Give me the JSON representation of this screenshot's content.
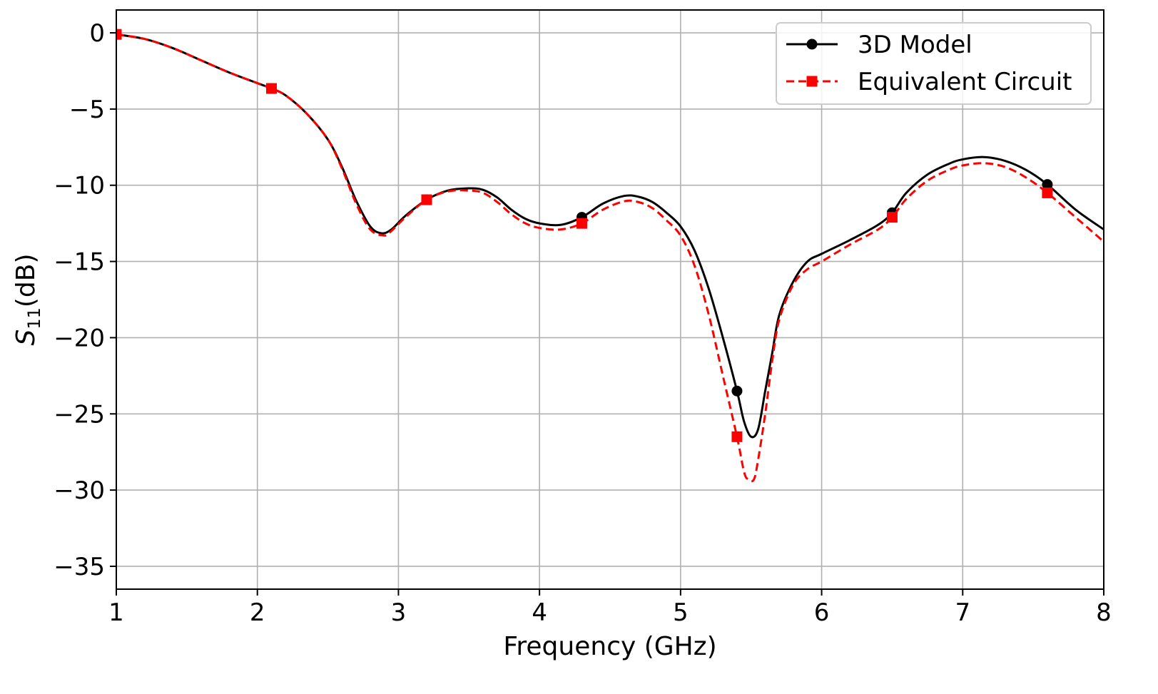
{
  "chart_data": {
    "type": "line",
    "title": "",
    "xlabel": "Frequency (GHz)",
    "ylabel": {
      "base": "S",
      "sub": "11",
      "unit": "(dB)"
    },
    "xlim": [
      1,
      8
    ],
    "ylim": [
      -36.5,
      1.5
    ],
    "xticks": [
      1,
      2,
      3,
      4,
      5,
      6,
      7,
      8
    ],
    "xtick_labels": [
      "1",
      "2",
      "3",
      "4",
      "5",
      "6",
      "7",
      "8"
    ],
    "yticks": [
      0,
      -5,
      -10,
      -15,
      -20,
      -25,
      -30,
      -35
    ],
    "ytick_labels": [
      "0",
      "−5",
      "−10",
      "−15",
      "−20",
      "−25",
      "−30",
      "−35"
    ],
    "grid": true,
    "legend_position": "top-right",
    "series": [
      {
        "name": "3D Model",
        "color": "#000000",
        "line_style": "solid",
        "marker": "circle",
        "x": [
          1.0,
          1.2,
          1.4,
          1.6,
          1.8,
          2.0,
          2.1,
          2.2,
          2.35,
          2.5,
          2.6,
          2.7,
          2.8,
          2.88,
          2.95,
          3.05,
          3.2,
          3.35,
          3.5,
          3.6,
          3.7,
          3.8,
          3.9,
          4.0,
          4.15,
          4.3,
          4.45,
          4.6,
          4.7,
          4.8,
          4.9,
          5.0,
          5.1,
          5.2,
          5.3,
          5.4,
          5.45,
          5.5,
          5.55,
          5.6,
          5.65,
          5.7,
          5.8,
          5.9,
          6.0,
          6.2,
          6.4,
          6.5,
          6.6,
          6.75,
          6.9,
          7.0,
          7.15,
          7.3,
          7.45,
          7.6,
          7.8,
          8.0
        ],
        "y": [
          -0.1,
          -0.4,
          -1.0,
          -1.8,
          -2.6,
          -3.3,
          -3.65,
          -4.1,
          -5.3,
          -7.0,
          -8.8,
          -11.0,
          -12.7,
          -13.15,
          -12.9,
          -12.0,
          -10.95,
          -10.35,
          -10.2,
          -10.3,
          -10.8,
          -11.6,
          -12.2,
          -12.5,
          -12.6,
          -12.1,
          -11.2,
          -10.7,
          -10.75,
          -11.1,
          -11.8,
          -12.7,
          -14.3,
          -16.8,
          -20.0,
          -23.5,
          -25.5,
          -26.5,
          -26.0,
          -23.5,
          -21.0,
          -18.5,
          -16.3,
          -15.0,
          -14.5,
          -13.6,
          -12.6,
          -11.8,
          -10.5,
          -9.3,
          -8.6,
          -8.3,
          -8.15,
          -8.4,
          -9.0,
          -9.95,
          -11.6,
          -12.9
        ],
        "markers_x": [
          1.0,
          2.1,
          3.2,
          4.3,
          5.4,
          6.5,
          7.6
        ],
        "markers_y": [
          -0.1,
          -3.65,
          -10.95,
          -12.1,
          -23.5,
          -11.8,
          -9.95
        ]
      },
      {
        "name": "Equivalent Circuit",
        "color": "#ff0000",
        "line_style": "dashed",
        "marker": "square",
        "x": [
          1.0,
          1.2,
          1.4,
          1.6,
          1.8,
          2.0,
          2.1,
          2.2,
          2.35,
          2.5,
          2.6,
          2.7,
          2.8,
          2.9,
          2.95,
          3.05,
          3.2,
          3.35,
          3.5,
          3.6,
          3.7,
          3.8,
          3.9,
          4.0,
          4.15,
          4.3,
          4.45,
          4.6,
          4.7,
          4.8,
          4.9,
          5.0,
          5.1,
          5.2,
          5.3,
          5.4,
          5.45,
          5.48,
          5.52,
          5.55,
          5.6,
          5.65,
          5.7,
          5.8,
          5.9,
          6.0,
          6.2,
          6.4,
          6.5,
          6.6,
          6.75,
          6.9,
          7.0,
          7.15,
          7.3,
          7.45,
          7.6,
          7.8,
          8.0
        ],
        "y": [
          -0.1,
          -0.4,
          -1.0,
          -1.8,
          -2.6,
          -3.3,
          -3.65,
          -4.1,
          -5.3,
          -7.0,
          -8.9,
          -11.2,
          -12.9,
          -13.3,
          -13.0,
          -12.1,
          -10.95,
          -10.4,
          -10.35,
          -10.5,
          -11.1,
          -11.9,
          -12.5,
          -12.8,
          -12.9,
          -12.5,
          -11.6,
          -11.05,
          -11.1,
          -11.5,
          -12.3,
          -13.3,
          -15.3,
          -18.5,
          -22.5,
          -26.5,
          -28.8,
          -29.3,
          -29.3,
          -28.0,
          -25.0,
          -21.5,
          -18.8,
          -16.5,
          -15.5,
          -15.0,
          -13.9,
          -12.9,
          -12.1,
          -10.9,
          -9.7,
          -9.0,
          -8.7,
          -8.55,
          -8.8,
          -9.5,
          -10.5,
          -12.1,
          -13.7
        ],
        "markers_x": [
          1.0,
          2.1,
          3.2,
          4.3,
          5.4,
          6.5,
          7.6
        ],
        "markers_y": [
          -0.1,
          -3.65,
          -10.95,
          -12.5,
          -26.5,
          -12.1,
          -10.5
        ]
      }
    ]
  }
}
